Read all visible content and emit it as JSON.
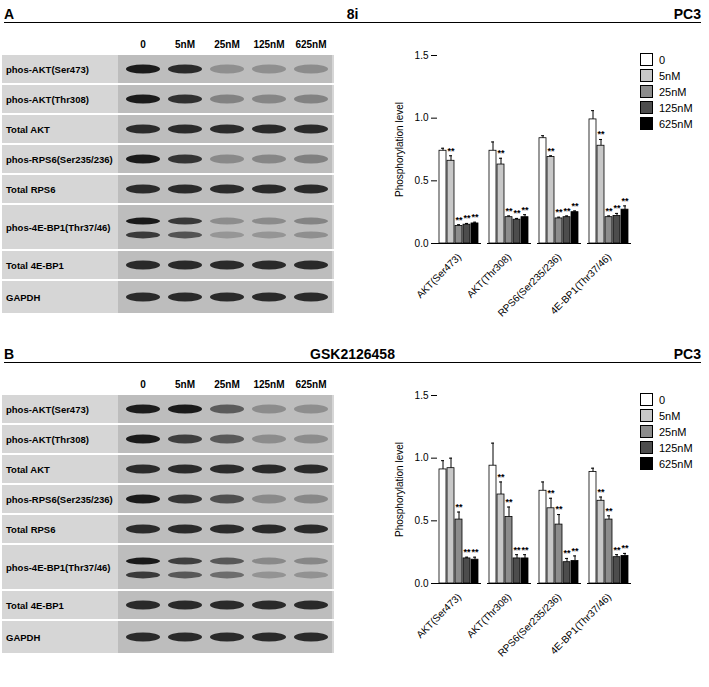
{
  "chart_data": [
    {
      "type": "bar",
      "title": "A",
      "subtitle": "8i",
      "annotation": "PC3",
      "ylabel": "Phosphorylation level",
      "categories": [
        "AKT(Ser473)",
        "AKT(Thr308)",
        "RPS6(Ser235/236)",
        "4E-BP1(Thr37/46)"
      ],
      "series": [
        {
          "name": "0",
          "color": "#ffffff",
          "values": [
            0.74,
            0.74,
            0.84,
            0.99
          ],
          "errors": [
            0.02,
            0.07,
            0.02,
            0.07
          ],
          "annotations": [
            null,
            null,
            null,
            null
          ]
        },
        {
          "name": "5nM",
          "color": "#c8c8c8",
          "values": [
            0.66,
            0.63,
            0.69,
            0.78
          ],
          "errors": [
            0.04,
            0.05,
            0.01,
            0.05
          ],
          "annotations": [
            "**",
            "**",
            "**",
            "**"
          ]
        },
        {
          "name": "25nM",
          "color": "#8c8c8c",
          "values": [
            0.14,
            0.21,
            0.2,
            0.21
          ],
          "errors": [
            0.01,
            0.01,
            0.01,
            0.01
          ],
          "annotations": [
            "**",
            "**",
            "**",
            "**"
          ]
        },
        {
          "name": "125nM",
          "color": "#4d4d4d",
          "values": [
            0.15,
            0.19,
            0.21,
            0.22
          ],
          "errors": [
            0.01,
            0.01,
            0.01,
            0.02
          ],
          "annotations": [
            "**",
            "**",
            "**",
            "**"
          ]
        },
        {
          "name": "625nM",
          "color": "#000000",
          "values": [
            0.16,
            0.21,
            0.25,
            0.27
          ],
          "errors": [
            0.01,
            0.02,
            0.01,
            0.03
          ],
          "annotations": [
            "**",
            "**",
            "**",
            "**"
          ]
        }
      ],
      "ylim": [
        0,
        1.5
      ],
      "yticks": [
        {
          "value": 0,
          "label": "0.0"
        },
        {
          "value": 0.5,
          "label": "0.5"
        },
        {
          "value": 1,
          "label": "1.0"
        },
        {
          "value": 1.5,
          "label": "1.5"
        }
      ],
      "legend": "right",
      "blot_lanes": [
        "0",
        "5nM",
        "25nM",
        "125nM",
        "625nM"
      ],
      "blot_rows": [
        "phos-AKT(Ser473)",
        "phos-AKT(Thr308)",
        "Total AKT",
        "phos-RPS6(Ser235/236)",
        "Total RPS6",
        "phos-4E-BP1(Thr37/46)",
        "Total 4E-BP1",
        "GAPDH"
      ]
    },
    {
      "type": "bar",
      "title": "B",
      "subtitle": "GSK2126458",
      "annotation": "PC3",
      "ylabel": "Phosphorylation level",
      "categories": [
        "AKT(Ser473)",
        "AKT(Thr308)",
        "RPS6(Ser235/236)",
        "4E-BP1(Thr37/46)"
      ],
      "series": [
        {
          "name": "0",
          "color": "#ffffff",
          "values": [
            0.91,
            0.94,
            0.74,
            0.89
          ],
          "errors": [
            0.07,
            0.18,
            0.07,
            0.03
          ],
          "annotations": [
            null,
            null,
            null,
            null
          ]
        },
        {
          "name": "5nM",
          "color": "#c8c8c8",
          "values": [
            0.92,
            0.71,
            0.6,
            0.66
          ],
          "errors": [
            0.08,
            0.1,
            0.08,
            0.03
          ],
          "annotations": [
            null,
            "**",
            "**",
            "**"
          ]
        },
        {
          "name": "25nM",
          "color": "#8c8c8c",
          "values": [
            0.51,
            0.53,
            0.47,
            0.51
          ],
          "errors": [
            0.06,
            0.08,
            0.08,
            0.03
          ],
          "annotations": [
            "**",
            "**",
            "**",
            "**"
          ]
        },
        {
          "name": "125nM",
          "color": "#4d4d4d",
          "values": [
            0.2,
            0.2,
            0.17,
            0.21
          ],
          "errors": [
            0.01,
            0.03,
            0.03,
            0.02
          ],
          "annotations": [
            "**",
            "**",
            "**",
            "**"
          ]
        },
        {
          "name": "625nM",
          "color": "#000000",
          "values": [
            0.19,
            0.2,
            0.18,
            0.22
          ],
          "errors": [
            0.02,
            0.03,
            0.04,
            0.02
          ],
          "annotations": [
            "**",
            "**",
            "**",
            "**"
          ]
        }
      ],
      "ylim": [
        0,
        1.5
      ],
      "yticks": [
        {
          "value": 0,
          "label": "0.0"
        },
        {
          "value": 0.5,
          "label": "0.5"
        },
        {
          "value": 1,
          "label": "1.0"
        },
        {
          "value": 1.5,
          "label": "1.5"
        }
      ],
      "legend": "right",
      "blot_lanes": [
        "0",
        "5nM",
        "25nM",
        "125nM",
        "625nM"
      ],
      "blot_rows": [
        "phos-AKT(Ser473)",
        "phos-AKT(Thr308)",
        "Total AKT",
        "phos-RPS6(Ser235/236)",
        "Total RPS6",
        "phos-4E-BP1(Thr37/46)",
        "Total 4E-BP1",
        "GAPDH"
      ]
    }
  ]
}
